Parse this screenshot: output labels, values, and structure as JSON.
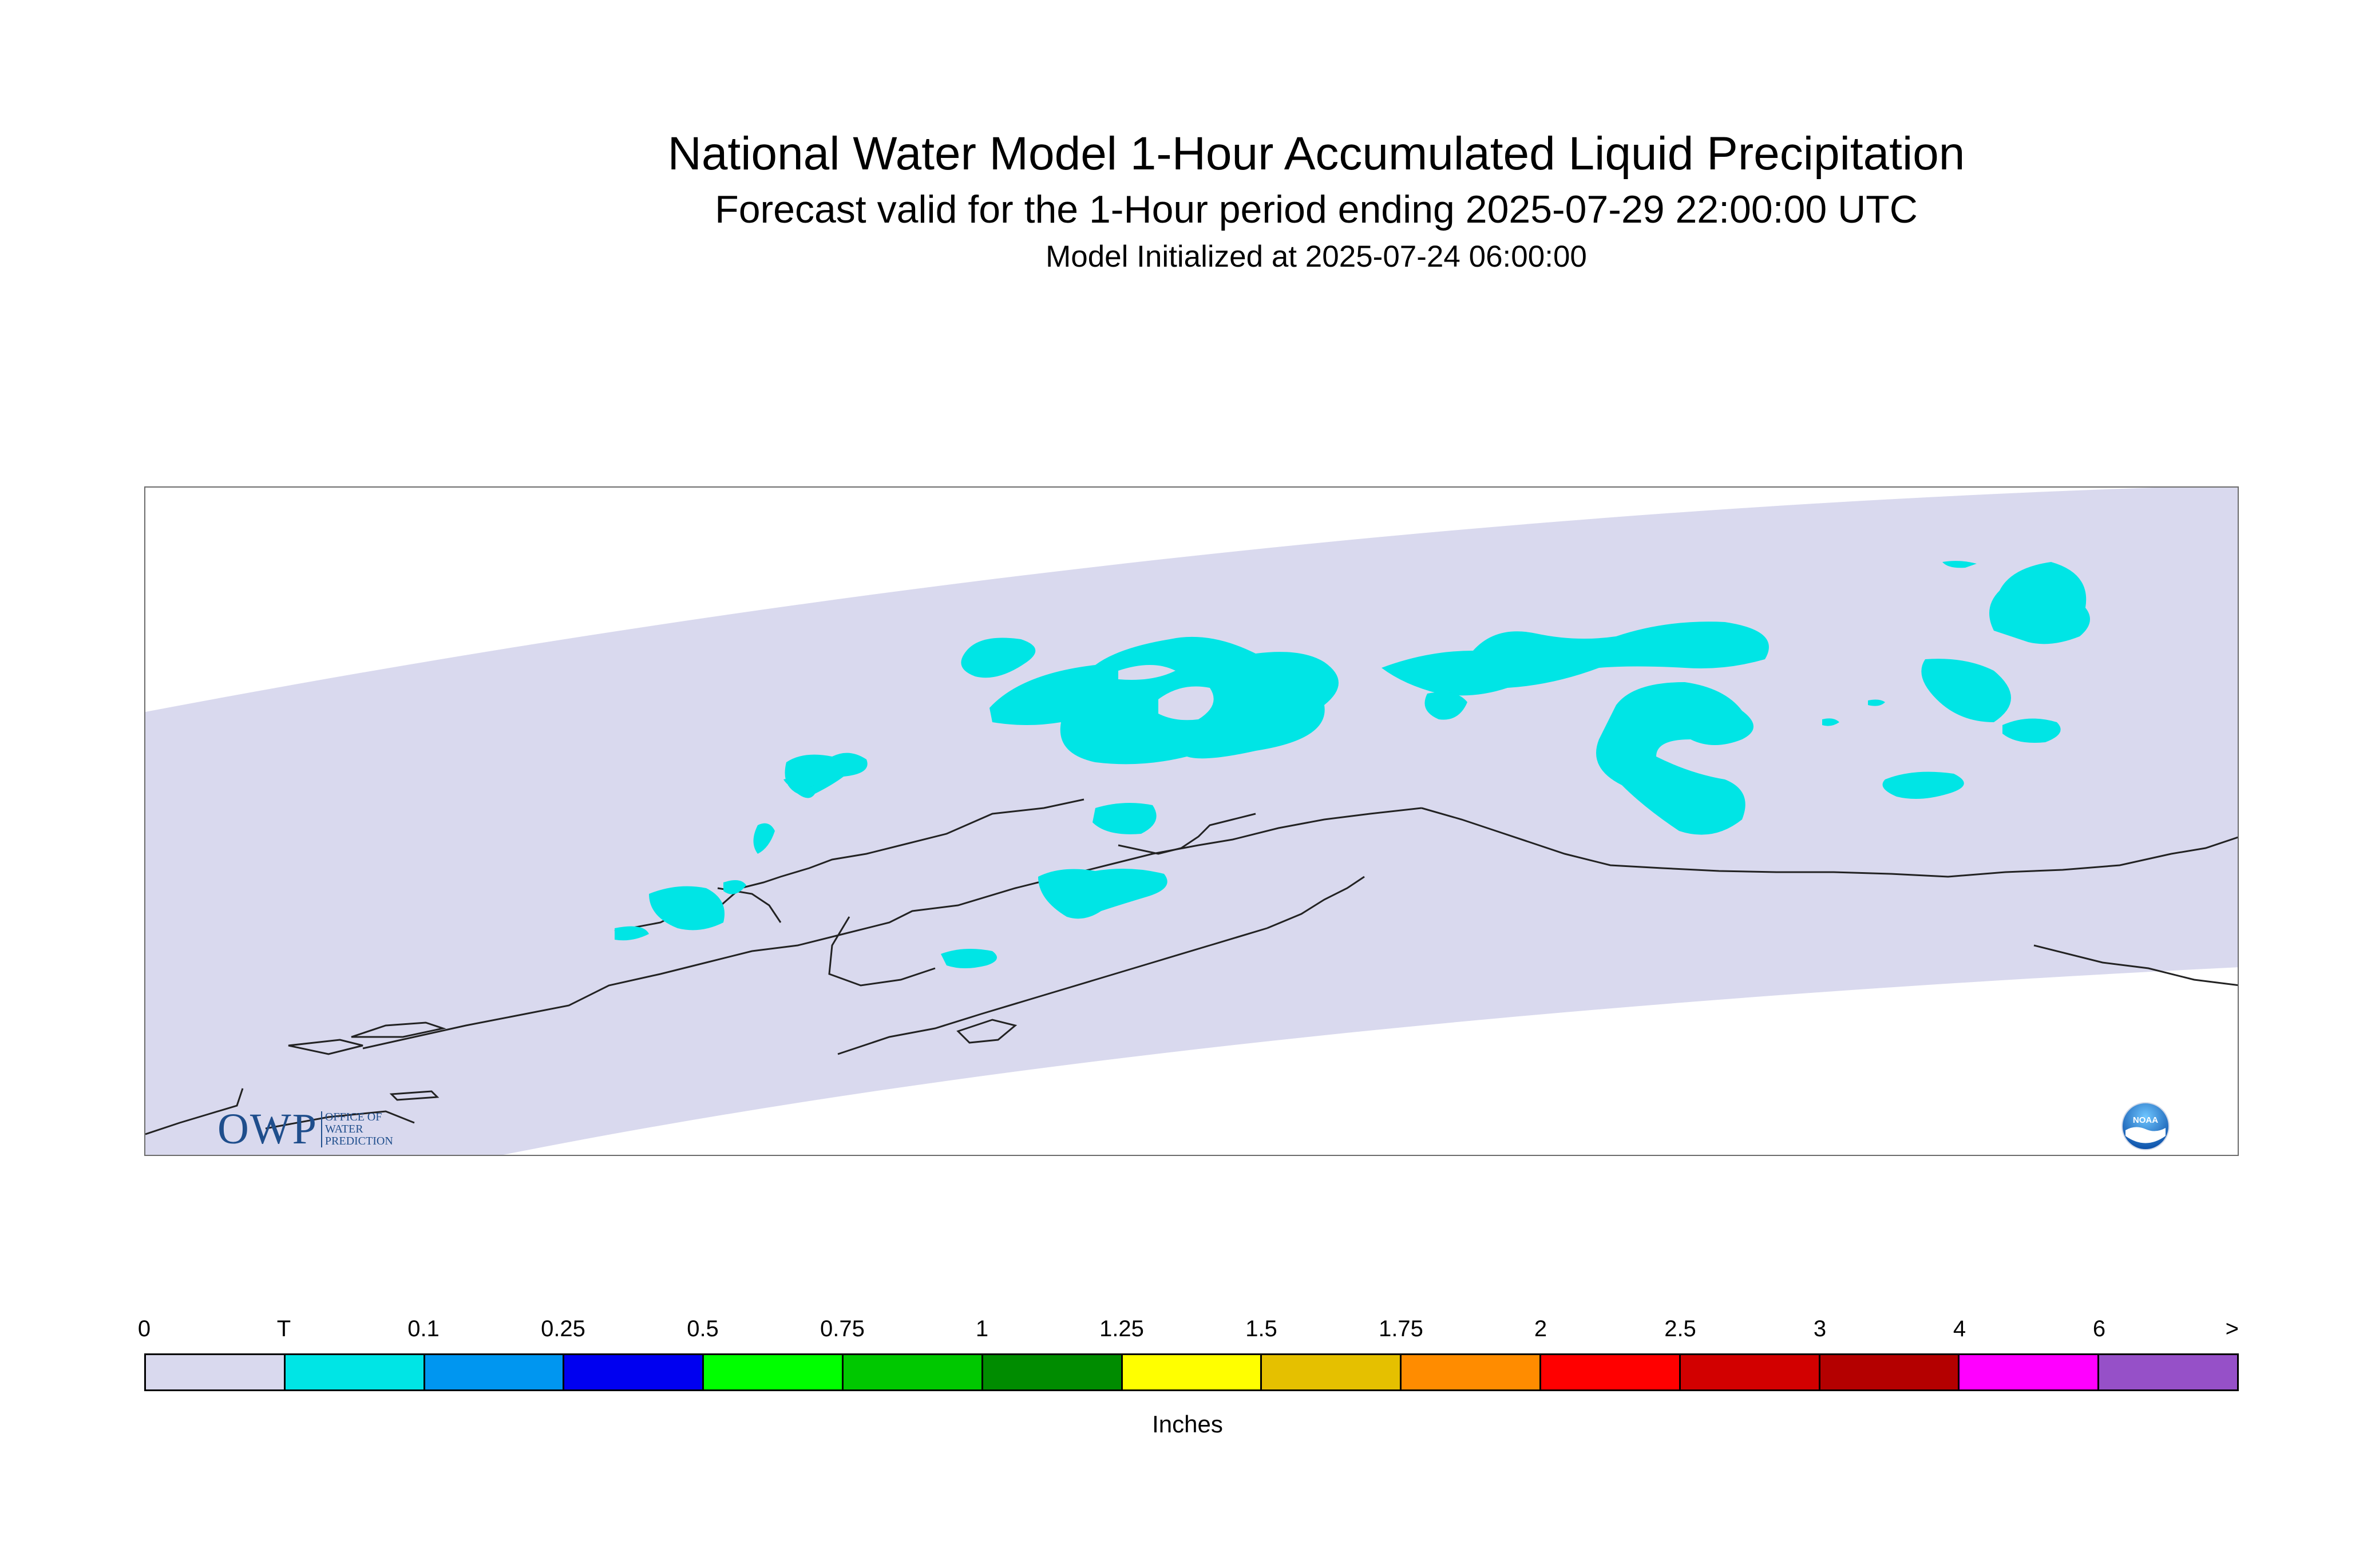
{
  "header": {
    "title": "National Water Model 1-Hour Accumulated Liquid Precipitation",
    "subtitle": "Forecast valid for the 1-Hour period ending 2025-07-29 22:00:00 UTC",
    "init_text": "Model Initialized at 2025-07-24 06:00:00"
  },
  "map": {
    "domain_fill_color": "#d9d9ee",
    "precip_color": "#00e5e5",
    "coastline_color": "#222222"
  },
  "logos": {
    "owp_mark": "OWP",
    "owp_text_line1": "OFFICE OF",
    "owp_text_line2": "WATER",
    "owp_text_line3": "PREDICTION",
    "noaa_text": "NOAA"
  },
  "legend": {
    "units": "Inches",
    "labels": [
      "0",
      "T",
      "0.1",
      "0.25",
      "0.5",
      "0.75",
      "1",
      "1.25",
      "1.5",
      "1.75",
      "2",
      "2.5",
      "3",
      "4",
      "6",
      ">"
    ],
    "colors": [
      "#d9d9ee",
      "#00e5e5",
      "#0096f0",
      "#0000f0",
      "#00ff00",
      "#00c800",
      "#008c00",
      "#ffff00",
      "#e5c000",
      "#ff8c00",
      "#ff0000",
      "#d20000",
      "#b40000",
      "#ff00ff",
      "#9650c8"
    ]
  }
}
